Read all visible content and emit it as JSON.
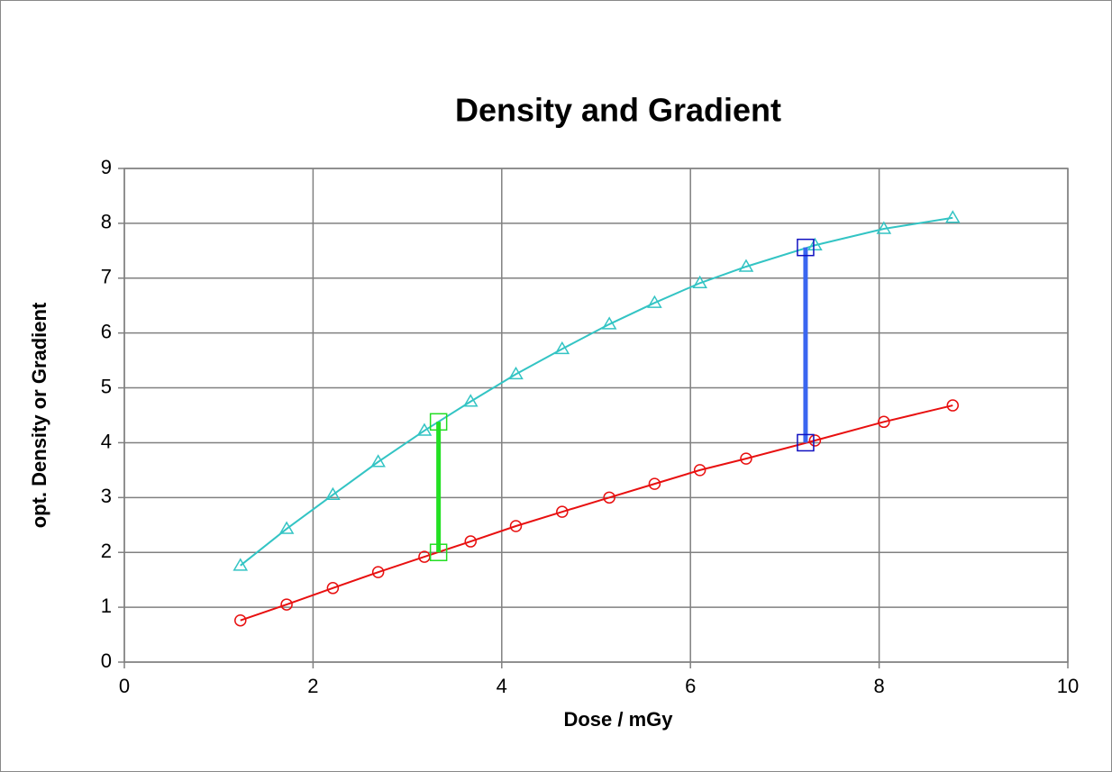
{
  "chart_data": {
    "type": "line",
    "title": "Density and Gradient",
    "x_label": "Dose / mGy",
    "y_label": "opt. Density or Gradient",
    "x": [
      1.23,
      1.72,
      2.21,
      2.69,
      3.18,
      3.67,
      4.15,
      4.64,
      5.14,
      5.62,
      6.1,
      6.59,
      7.32,
      8.05,
      8.78
    ],
    "series": [
      {
        "color": "#33c4c4",
        "marker": "triangle",
        "values": [
          1.76,
          2.43,
          3.05,
          3.65,
          4.22,
          4.75,
          5.25,
          5.71,
          6.16,
          6.55,
          6.91,
          7.21,
          7.6,
          7.9,
          8.1
        ]
      },
      {
        "color": "#e81010",
        "marker": "circle",
        "values": [
          0.76,
          1.05,
          1.35,
          1.64,
          1.92,
          2.2,
          2.48,
          2.74,
          3.0,
          3.25,
          3.5,
          3.71,
          4.04,
          4.38,
          4.68
        ]
      }
    ],
    "segments": [
      {
        "x": 3.33,
        "y1": 4.38,
        "y2": 2.0,
        "color": "#22e022",
        "marker_color": "#22dd22"
      },
      {
        "x": 7.22,
        "y1": 7.56,
        "y2": 4.0,
        "color": "#3a66f0",
        "marker_color": "#1010c0"
      }
    ],
    "xlim": [
      0,
      10
    ],
    "xticks": [
      0,
      2,
      4,
      6,
      8,
      10
    ],
    "ylim": [
      0,
      9
    ],
    "yticks": [
      0,
      1,
      2,
      3,
      4,
      5,
      6,
      7,
      8,
      9
    ],
    "grid": true
  }
}
